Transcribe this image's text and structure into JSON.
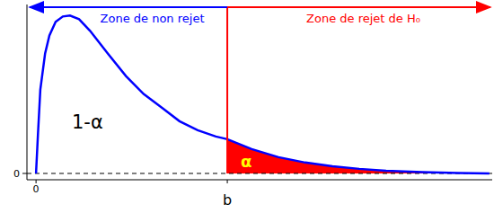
{
  "chart_data": {
    "type": "line",
    "color": "#0000ff",
    "x": [
      0,
      0.04,
      0.09,
      0.19,
      0.28,
      0.41,
      0.56,
      0.71,
      0.9,
      1.13,
      1.5,
      1.88,
      2.25,
      2.63,
      3.0,
      3.38,
      3.76,
      4.0,
      4.51,
      5.07,
      5.63,
      6.2,
      6.76,
      7.32,
      8.08,
      8.83,
      9.48
    ],
    "values": [
      0,
      0.246,
      0.531,
      0.76,
      0.874,
      0.96,
      0.994,
      1.0,
      0.977,
      0.903,
      0.76,
      0.617,
      0.503,
      0.417,
      0.331,
      0.274,
      0.234,
      0.217,
      0.154,
      0.103,
      0.069,
      0.046,
      0.029,
      0.017,
      0.009,
      0.003,
      0
    ],
    "xlim": [
      -0.19,
      9.54
    ],
    "ylim": [
      -0.04,
      1.07
    ],
    "xticks": [
      {
        "value": 0,
        "label": "0"
      },
      {
        "value": 4,
        "label": "b"
      }
    ],
    "yticks": [
      0
    ],
    "critical_value": 4,
    "annotations": {
      "non_reject_zone": "Zone de non rejet",
      "reject_zone": "Zone de rejet de H₀",
      "non_reject_area": "1-α",
      "reject_area": "α"
    }
  }
}
